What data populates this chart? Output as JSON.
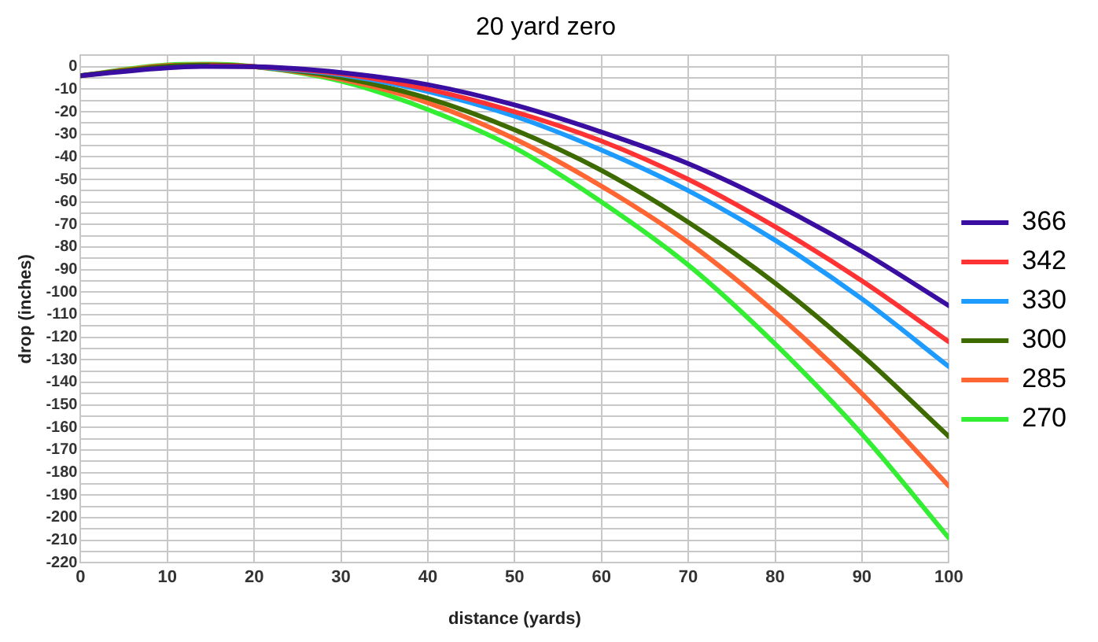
{
  "chart_data": {
    "type": "line",
    "title": "20 yard zero",
    "xlabel": "distance (yards)",
    "ylabel": "drop (inches)",
    "x": [
      0,
      10,
      15,
      20,
      30,
      40,
      50,
      60,
      70,
      80,
      90,
      100
    ],
    "series": [
      {
        "name": "366",
        "color": "#3a0ea0",
        "values": [
          -4,
          -0.5,
          0.1,
          0,
          -2.6,
          -8,
          -17,
          -29,
          -43,
          -61,
          -82,
          -106
        ]
      },
      {
        "name": "342",
        "color": "#ff3333",
        "values": [
          null,
          null,
          0.3,
          0,
          -3.2,
          -10,
          -20,
          -33,
          -50,
          -71,
          -95,
          -122
        ]
      },
      {
        "name": "330",
        "color": "#1e9bff",
        "values": [
          null,
          null,
          null,
          0,
          -3.6,
          -11,
          -22,
          -37,
          -55,
          -77,
          -103,
          -133
        ]
      },
      {
        "name": "300",
        "color": "#3d6b00",
        "values": [
          -4,
          0.2,
          0.7,
          0,
          -4.8,
          -14,
          -28,
          -46,
          -69,
          -96,
          -128,
          -164
        ]
      },
      {
        "name": "285",
        "color": "#ff6633",
        "values": [
          -4,
          0.5,
          0.9,
          0,
          -5.6,
          -16,
          -32,
          -53,
          -78,
          -109,
          -145,
          -186
        ]
      },
      {
        "name": "270",
        "color": "#33ee33",
        "values": [
          -4,
          0.8,
          1.1,
          0,
          -6.4,
          -19,
          -36,
          -60,
          -88,
          -123,
          -163,
          -209
        ]
      }
    ],
    "xlim": [
      0,
      100
    ],
    "xticks": [
      0,
      10,
      20,
      30,
      40,
      50,
      60,
      70,
      80,
      90,
      100
    ],
    "ylim": [
      -220,
      5
    ],
    "yticks": [
      -220,
      {
        "value": -215,
        "label": null
      },
      -210,
      {
        "value": -205,
        "label": null
      },
      -200,
      {
        "value": -195,
        "label": null
      },
      -190,
      {
        "value": -185,
        "label": null
      },
      -180,
      {
        "value": -175,
        "label": null
      },
      -170,
      {
        "value": -165,
        "label": null
      },
      -160,
      {
        "value": -155,
        "label": null
      },
      -150,
      {
        "value": -145,
        "label": null
      },
      -140,
      {
        "value": -135,
        "label": null
      },
      -130,
      {
        "value": -125,
        "label": null
      },
      -120,
      {
        "value": -115,
        "label": null
      },
      -110,
      {
        "value": -105,
        "label": null
      },
      -100,
      {
        "value": -95,
        "label": null
      },
      -90,
      {
        "value": -85,
        "label": null
      },
      -80,
      {
        "value": -75,
        "label": null
      },
      -70,
      {
        "value": -65,
        "label": null
      },
      -60,
      {
        "value": -55,
        "label": null
      },
      -50,
      {
        "value": -45,
        "label": null
      },
      -40,
      {
        "value": -35,
        "label": null
      },
      -30,
      {
        "value": -25,
        "label": null
      },
      -20,
      {
        "value": -15,
        "label": null
      },
      -10,
      {
        "value": -5,
        "label": null
      },
      0,
      {
        "value": 5,
        "label": null
      }
    ],
    "grid": true,
    "legend": "right",
    "marker": "none",
    "line_style": "solid"
  }
}
